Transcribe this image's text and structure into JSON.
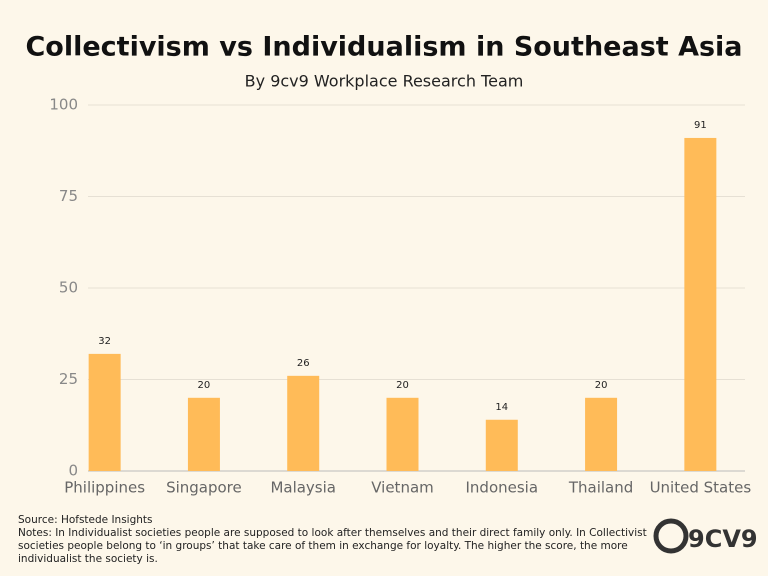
{
  "chart_data": {
    "type": "bar",
    "title": "Collectivism vs Individualism in Southeast Asia",
    "subtitle": "By 9cv9 Workplace Research Team",
    "categories": [
      "Philippines",
      "Singapore",
      "Malaysia",
      "Vietnam",
      "Indonesia",
      "Thailand",
      "United States"
    ],
    "values": [
      32,
      20,
      26,
      20,
      14,
      20,
      91
    ],
    "color": "#ffbb58",
    "ylim": [
      0,
      100
    ],
    "yticks": [
      0,
      25,
      50,
      75,
      100
    ],
    "grid": true,
    "source": "Source: Hofstede Insights",
    "notes": "Notes: In Individualist societies people are supposed to look after themselves and their direct family only. In Collectivist societies people belong to ‘in groups’ that take care of them in exchange for loyalty. The higher the score, the more individualist the society is.",
    "logo": "9CV9"
  }
}
